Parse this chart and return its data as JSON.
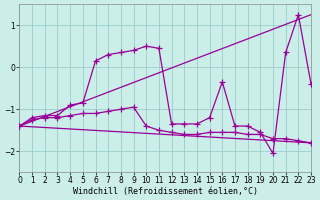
{
  "background_color": "#cceee8",
  "grid_color": "#99cccc",
  "line_color": "#990099",
  "marker": "+",
  "markersize": 4,
  "linewidth": 0.9,
  "xlabel": "Windchill (Refroidissement éolien,°C)",
  "xlabel_fontsize": 6,
  "tick_fontsize": 5.5,
  "xlim": [
    0,
    23
  ],
  "ylim": [
    -2.5,
    1.5
  ],
  "yticks": [
    -2,
    -1,
    0,
    1
  ],
  "xticks": [
    0,
    1,
    2,
    3,
    4,
    5,
    6,
    7,
    8,
    9,
    10,
    11,
    12,
    13,
    14,
    15,
    16,
    17,
    18,
    19,
    20,
    21,
    22,
    23
  ],
  "zigzag_x": [
    0,
    1,
    2,
    3,
    4,
    5,
    6,
    7,
    8,
    9,
    10,
    11,
    12,
    13,
    14,
    15,
    16,
    17,
    18,
    19,
    20,
    21,
    22,
    23
  ],
  "zigzag_y": [
    -1.4,
    -1.2,
    -1.15,
    -1.15,
    -0.9,
    -0.85,
    0.15,
    0.3,
    0.35,
    0.4,
    0.5,
    0.45,
    -1.35,
    -1.35,
    -1.35,
    -1.2,
    -0.35,
    -1.4,
    -1.4,
    -1.55,
    -2.05,
    0.35,
    1.25,
    -0.4
  ],
  "lower_series_x": [
    0,
    1,
    2,
    3,
    4,
    5,
    6,
    7,
    8,
    9,
    10,
    11,
    12,
    13,
    14,
    15,
    16,
    17,
    18,
    19,
    20,
    21,
    22,
    23
  ],
  "lower_series_y": [
    -1.4,
    -1.25,
    -1.2,
    -1.2,
    -1.15,
    -1.1,
    -1.1,
    -1.05,
    -1.0,
    -0.95,
    -1.4,
    -1.5,
    -1.55,
    -1.6,
    -1.6,
    -1.55,
    -1.55,
    -1.55,
    -1.6,
    -1.6,
    -1.7,
    -1.7,
    -1.75,
    -1.8
  ],
  "upper_line_x": [
    0,
    23
  ],
  "upper_line_y": [
    -1.4,
    1.25
  ],
  "lower_line_x": [
    0,
    23
  ],
  "lower_line_y": [
    -1.4,
    -1.8
  ]
}
